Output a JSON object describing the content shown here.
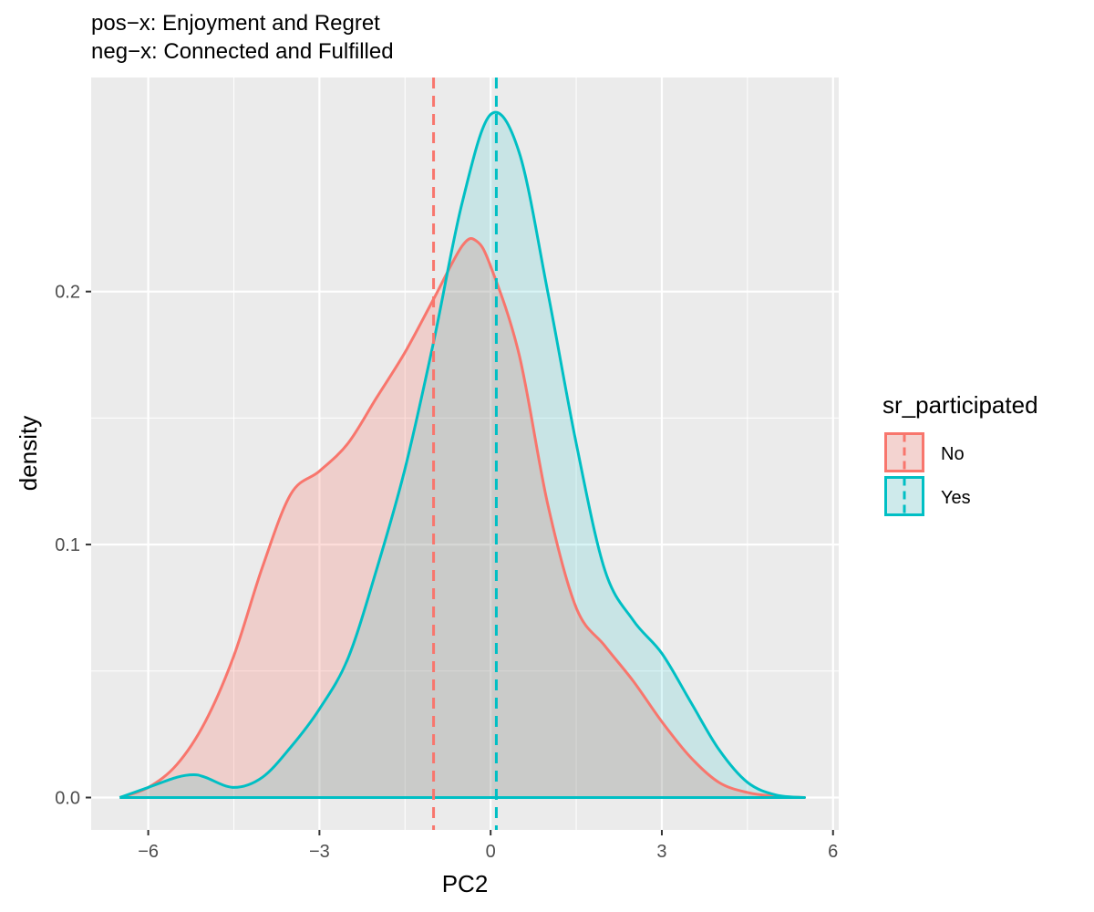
{
  "chart_data": {
    "type": "area",
    "subtitle_lines": [
      "pos−x: Enjoyment and Regret",
      "neg−x: Connected and Fulfilled"
    ],
    "xlabel": "PC2",
    "ylabel": "density",
    "xlim": [
      -7.0,
      6.1
    ],
    "ylim": [
      -0.0128,
      0.2846
    ],
    "x_ticks": [
      -6,
      -3,
      0,
      3,
      6
    ],
    "x_tick_labels": [
      "−6",
      "−3",
      "0",
      "3",
      "6"
    ],
    "y_ticks": [
      0.0,
      0.1,
      0.2
    ],
    "y_tick_labels": [
      "0.0",
      "0.1",
      "0.2"
    ],
    "grid": true,
    "panel_background": "#EBEBEB",
    "legend": {
      "title": "sr_participated",
      "placement": "right",
      "entries": [
        "No",
        "Yes"
      ]
    },
    "series": [
      {
        "name": "No",
        "color": "#F8766D",
        "fill_opacity": 0.25,
        "mean_line_x": -1.0,
        "x": [
          -6.5,
          -6.0,
          -5.5,
          -5.0,
          -4.5,
          -4.0,
          -3.5,
          -3.0,
          -2.5,
          -2.0,
          -1.5,
          -1.0,
          -0.5,
          -0.25,
          0.0,
          0.5,
          1.0,
          1.5,
          2.0,
          2.5,
          3.0,
          3.5,
          4.0,
          4.5,
          5.0,
          5.5
        ],
        "y": [
          0.0,
          0.004,
          0.013,
          0.03,
          0.056,
          0.091,
          0.12,
          0.129,
          0.14,
          0.158,
          0.176,
          0.197,
          0.218,
          0.22,
          0.21,
          0.175,
          0.116,
          0.075,
          0.06,
          0.046,
          0.03,
          0.016,
          0.006,
          0.002,
          0.0005,
          0.0
        ]
      },
      {
        "name": "Yes",
        "color": "#00BFC4",
        "fill_opacity": 0.15,
        "mean_line_x": 0.1,
        "x": [
          -6.5,
          -6.0,
          -5.5,
          -5.2,
          -5.0,
          -4.5,
          -4.0,
          -3.5,
          -3.0,
          -2.5,
          -2.0,
          -1.5,
          -1.0,
          -0.5,
          0.0,
          0.5,
          1.0,
          1.5,
          2.0,
          2.5,
          3.0,
          3.5,
          4.0,
          4.5,
          5.0,
          5.5
        ],
        "y": [
          0.0,
          0.004,
          0.008,
          0.009,
          0.008,
          0.004,
          0.008,
          0.02,
          0.035,
          0.055,
          0.09,
          0.13,
          0.18,
          0.235,
          0.27,
          0.255,
          0.2,
          0.14,
          0.09,
          0.07,
          0.057,
          0.038,
          0.019,
          0.006,
          0.001,
          0.0
        ]
      }
    ]
  }
}
